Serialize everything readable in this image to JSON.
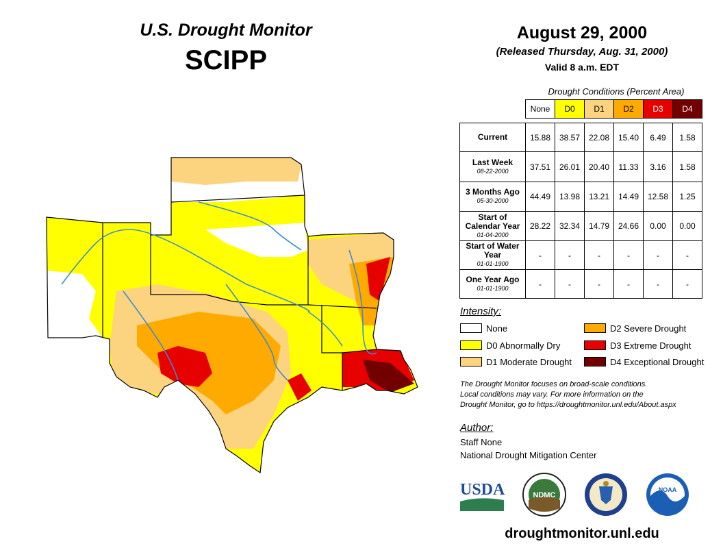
{
  "header": {
    "title": "U.S. Drought Monitor",
    "region": "SCIPP",
    "date": "August 29, 2000",
    "released": "(Released Thursday, Aug. 31, 2000)",
    "valid": "Valid 8 a.m. EDT"
  },
  "table": {
    "caption": "Drought Conditions (Percent Area)",
    "columns": [
      {
        "label": "None",
        "color": "#ffffff",
        "text_color": "#000000"
      },
      {
        "label": "D0",
        "color": "#ffff00",
        "text_color": "#000000"
      },
      {
        "label": "D1",
        "color": "#fcd37f",
        "text_color": "#000000"
      },
      {
        "label": "D2",
        "color": "#ffaa00",
        "text_color": "#000000"
      },
      {
        "label": "D3",
        "color": "#e60000",
        "text_color": "#ffffff"
      },
      {
        "label": "D4",
        "color": "#730000",
        "text_color": "#ffffff"
      }
    ],
    "rows": [
      {
        "label": "Current",
        "date": "",
        "values": [
          "15.88",
          "38.57",
          "22.08",
          "15.40",
          "6.49",
          "1.58"
        ]
      },
      {
        "label": "Last Week",
        "date": "08-22-2000",
        "values": [
          "37.51",
          "26.01",
          "20.40",
          "11.33",
          "3.16",
          "1.58"
        ]
      },
      {
        "label": "3 Months Ago",
        "date": "05-30-2000",
        "values": [
          "44.49",
          "13.98",
          "13.21",
          "14.49",
          "12.58",
          "1.25"
        ]
      },
      {
        "label": "Start of Calendar Year",
        "date": "01-04-2000",
        "values": [
          "28.22",
          "32.34",
          "14.79",
          "24.66",
          "0.00",
          "0.00"
        ]
      },
      {
        "label": "Start of Water Year",
        "date": "01-01-1900",
        "values": [
          "-",
          "-",
          "-",
          "-",
          "-",
          "-"
        ]
      },
      {
        "label": "One Year Ago",
        "date": "01-01-1900",
        "values": [
          "-",
          "-",
          "-",
          "-",
          "-",
          "-"
        ]
      }
    ]
  },
  "legend": {
    "title": "Intensity:",
    "items": [
      {
        "label": "None",
        "color": "#ffffff"
      },
      {
        "label": "D0 Abnormally Dry",
        "color": "#ffff00"
      },
      {
        "label": "D1 Moderate Drought",
        "color": "#fcd37f"
      },
      {
        "label": "D2 Severe Drought",
        "color": "#ffaa00"
      },
      {
        "label": "D3 Extreme Drought",
        "color": "#e60000"
      },
      {
        "label": "D4 Exceptional Drought",
        "color": "#730000"
      }
    ]
  },
  "disclaimer": [
    "The Drought Monitor focuses on broad-scale conditions.",
    "Local conditions may vary. For more information on the",
    "Drought Monitor, go to https://droughtmonitor.unl.edu/About.aspx"
  ],
  "author": {
    "title": "Author:",
    "name": "Staff None",
    "org": "National Drought Mitigation Center"
  },
  "logos": {
    "usda": "USDA",
    "ndmc": "NDMC",
    "noaa": "NOAA"
  },
  "site_url": "droughtmonitor.unl.edu",
  "colors": {
    "river": "#3c8cd2",
    "border": "#000000"
  }
}
